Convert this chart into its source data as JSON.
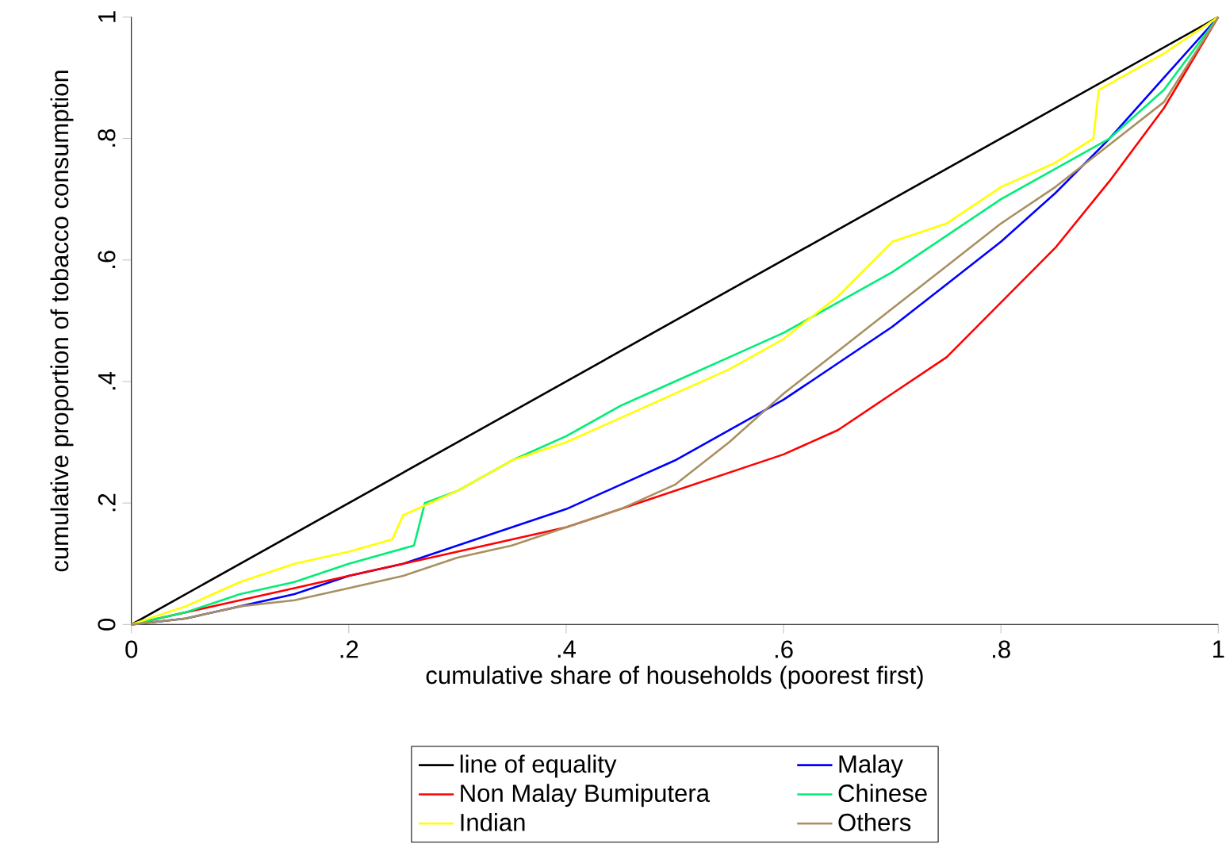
{
  "chart_data": {
    "type": "line",
    "xlabel": "cumulative share of households (poorest first)",
    "ylabel": "cumulative proportion of tobacco consumption",
    "xlim": [
      0,
      1
    ],
    "ylim": [
      0,
      1
    ],
    "xticks": [
      0,
      {
        "value": 0.2,
        "label": ".2"
      },
      {
        "value": 0.4,
        "label": ".4"
      },
      {
        "value": 0.6,
        "label": ".6"
      },
      {
        "value": 0.8,
        "label": ".8"
      },
      1
    ],
    "yticks": [
      0,
      {
        "value": 0.2,
        "label": ".2"
      },
      {
        "value": 0.4,
        "label": ".4"
      },
      {
        "value": 0.6,
        "label": ".6"
      },
      {
        "value": 0.8,
        "label": ".8"
      },
      1
    ],
    "legend": "bottom",
    "marker": "none",
    "line_style": "solid",
    "series": [
      {
        "name": "line of equality",
        "color": "#000000",
        "x": [
          0,
          1
        ],
        "values": [
          0,
          1
        ]
      },
      {
        "name": "Malay",
        "color": "#0000ff",
        "x": [
          0,
          0.05,
          0.1,
          0.15,
          0.2,
          0.25,
          0.3,
          0.35,
          0.4,
          0.45,
          0.5,
          0.55,
          0.6,
          0.65,
          0.7,
          0.75,
          0.8,
          0.85,
          0.9,
          0.95,
          1
        ],
        "values": [
          0,
          0.01,
          0.03,
          0.05,
          0.08,
          0.1,
          0.13,
          0.16,
          0.19,
          0.23,
          0.27,
          0.32,
          0.37,
          0.43,
          0.49,
          0.56,
          0.63,
          0.71,
          0.8,
          0.9,
          1
        ]
      },
      {
        "name": "Non Malay Bumiputera",
        "color": "#ff0000",
        "x": [
          0,
          0.05,
          0.1,
          0.15,
          0.2,
          0.25,
          0.3,
          0.35,
          0.4,
          0.45,
          0.5,
          0.55,
          0.6,
          0.65,
          0.7,
          0.75,
          0.8,
          0.85,
          0.9,
          0.95,
          1
        ],
        "values": [
          0,
          0.02,
          0.04,
          0.06,
          0.08,
          0.1,
          0.12,
          0.14,
          0.16,
          0.19,
          0.22,
          0.25,
          0.28,
          0.32,
          0.38,
          0.44,
          0.53,
          0.62,
          0.73,
          0.85,
          1
        ]
      },
      {
        "name": "Chinese",
        "color": "#00ee77",
        "x": [
          0,
          0.05,
          0.1,
          0.15,
          0.2,
          0.26,
          0.27,
          0.3,
          0.35,
          0.4,
          0.45,
          0.5,
          0.55,
          0.6,
          0.65,
          0.7,
          0.75,
          0.8,
          0.85,
          0.9,
          0.95,
          1
        ],
        "values": [
          0,
          0.02,
          0.05,
          0.07,
          0.1,
          0.13,
          0.2,
          0.22,
          0.27,
          0.31,
          0.36,
          0.4,
          0.44,
          0.48,
          0.53,
          0.58,
          0.64,
          0.7,
          0.75,
          0.8,
          0.88,
          1
        ]
      },
      {
        "name": "Indian",
        "color": "#ffff00",
        "x": [
          0,
          0.05,
          0.1,
          0.15,
          0.2,
          0.24,
          0.25,
          0.3,
          0.35,
          0.4,
          0.45,
          0.5,
          0.55,
          0.6,
          0.65,
          0.7,
          0.75,
          0.8,
          0.85,
          0.885,
          0.89,
          0.95,
          1
        ],
        "values": [
          0,
          0.03,
          0.07,
          0.1,
          0.12,
          0.14,
          0.18,
          0.22,
          0.27,
          0.3,
          0.34,
          0.38,
          0.42,
          0.47,
          0.54,
          0.63,
          0.66,
          0.72,
          0.76,
          0.8,
          0.88,
          0.94,
          1
        ]
      },
      {
        "name": "Others",
        "color": "#a89060",
        "x": [
          0,
          0.05,
          0.1,
          0.15,
          0.2,
          0.25,
          0.3,
          0.35,
          0.4,
          0.45,
          0.5,
          0.55,
          0.6,
          0.65,
          0.7,
          0.75,
          0.8,
          0.85,
          0.9,
          0.95,
          1
        ],
        "values": [
          0,
          0.01,
          0.03,
          0.04,
          0.06,
          0.08,
          0.11,
          0.13,
          0.16,
          0.19,
          0.23,
          0.3,
          0.38,
          0.45,
          0.52,
          0.59,
          0.66,
          0.72,
          0.79,
          0.86,
          1
        ]
      }
    ]
  }
}
